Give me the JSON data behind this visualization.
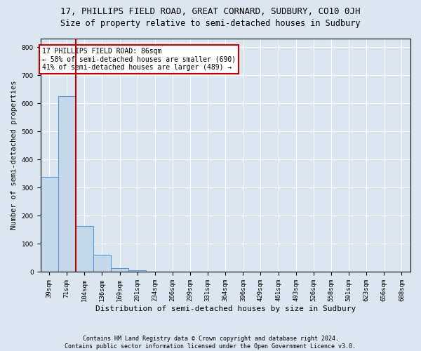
{
  "title_line1": "17, PHILLIPS FIELD ROAD, GREAT CORNARD, SUDBURY, CO10 0JH",
  "title_line2": "Size of property relative to semi-detached houses in Sudbury",
  "xlabel": "Distribution of semi-detached houses by size in Sudbury",
  "ylabel": "Number of semi-detached properties",
  "footnote": "Contains HM Land Registry data © Crown copyright and database right 2024.\nContains public sector information licensed under the Open Government Licence v3.0.",
  "categories": [
    "39sqm",
    "71sqm",
    "104sqm",
    "136sqm",
    "169sqm",
    "201sqm",
    "234sqm",
    "266sqm",
    "299sqm",
    "331sqm",
    "364sqm",
    "396sqm",
    "429sqm",
    "461sqm",
    "493sqm",
    "526sqm",
    "558sqm",
    "591sqm",
    "623sqm",
    "656sqm",
    "688sqm"
  ],
  "values": [
    338,
    625,
    163,
    60,
    14,
    6,
    0,
    0,
    0,
    0,
    0,
    0,
    0,
    0,
    0,
    0,
    0,
    0,
    0,
    0,
    0
  ],
  "bar_color": "#c5d8ea",
  "bar_edge_color": "#5b9bd5",
  "property_line_bin": 1,
  "property_size": "86sqm",
  "property_name": "17 PHILLIPS FIELD ROAD",
  "pct_smaller": 58,
  "count_smaller": 690,
  "pct_larger": 41,
  "count_larger": 489,
  "line_color": "#c00000",
  "annotation_box_color": "#ffffff",
  "annotation_box_edge": "#c00000",
  "ylim": [
    0,
    830
  ],
  "yticks": [
    0,
    100,
    200,
    300,
    400,
    500,
    600,
    700,
    800
  ],
  "bg_color": "#dce6f1",
  "plot_bg_color": "#dce6f1",
  "grid_color": "#ffffff",
  "title1_fontsize": 9,
  "title2_fontsize": 8.5,
  "ylabel_fontsize": 7.5,
  "xlabel_fontsize": 8,
  "tick_fontsize": 6.5,
  "annot_fontsize": 7,
  "footnote_fontsize": 6
}
